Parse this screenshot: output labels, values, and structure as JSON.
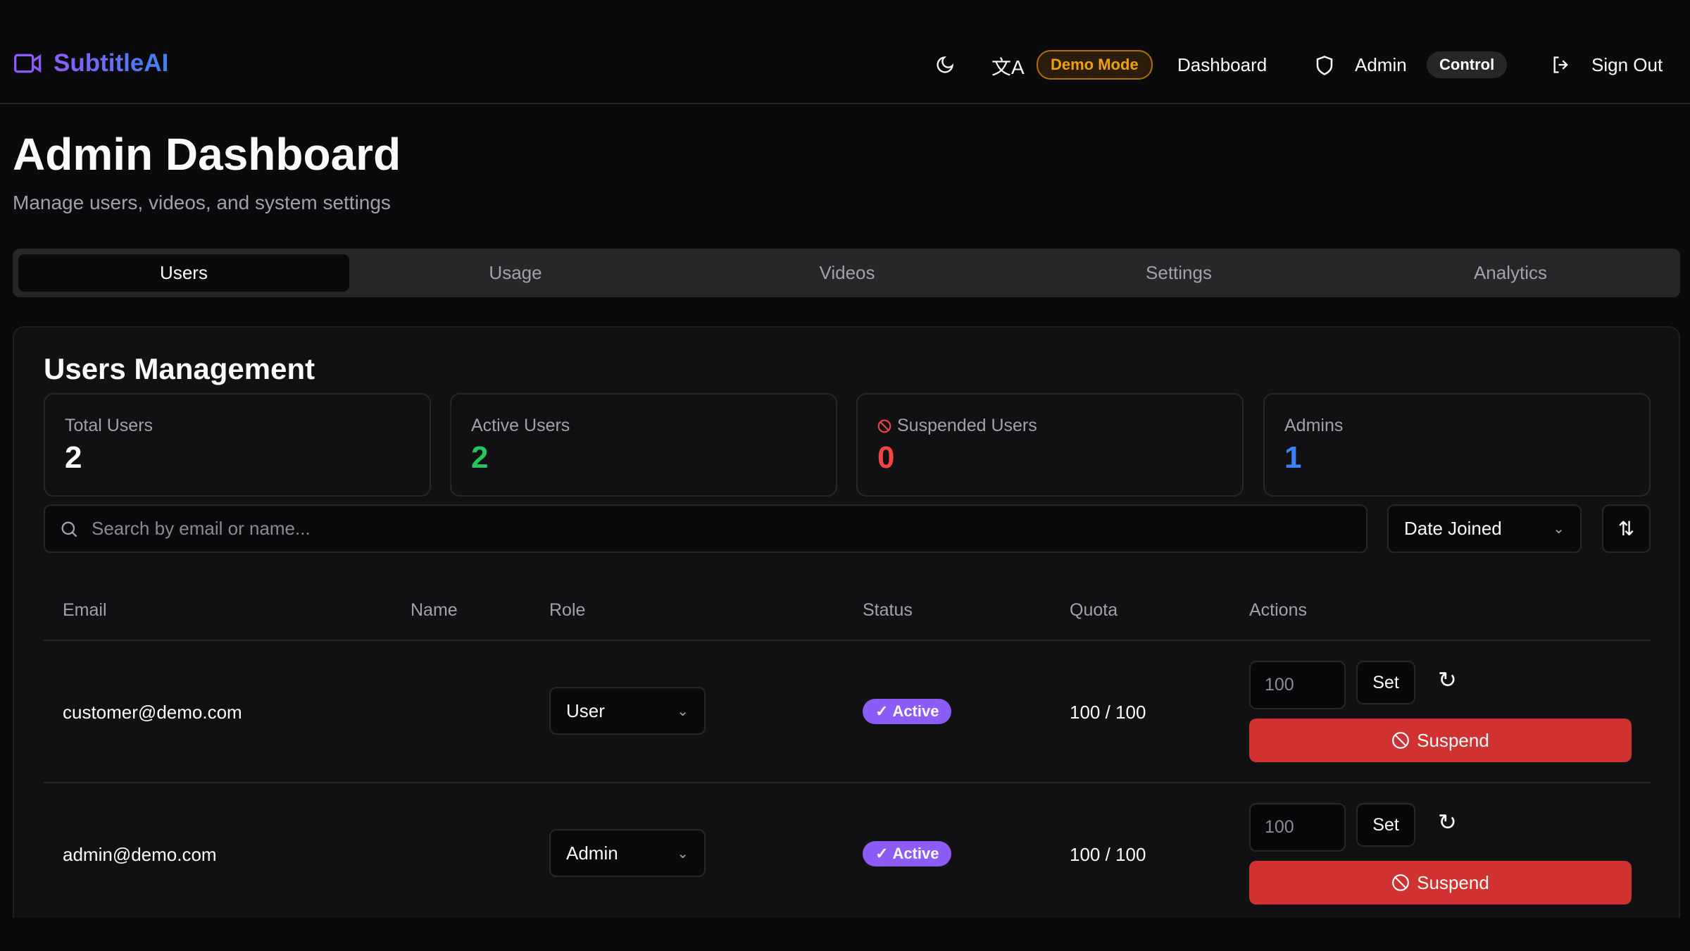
{
  "header": {
    "brand": "SubtitleAI",
    "demo_mode": "Demo Mode",
    "dashboard": "Dashboard",
    "admin": "Admin",
    "control": "Control",
    "sign_out": "Sign Out"
  },
  "page": {
    "title": "Admin Dashboard",
    "subtitle": "Manage users, videos, and system settings"
  },
  "tabs": [
    {
      "label": "Users",
      "active": true
    },
    {
      "label": "Usage"
    },
    {
      "label": "Videos"
    },
    {
      "label": "Settings"
    },
    {
      "label": "Analytics"
    }
  ],
  "users": {
    "title": "Users Management",
    "stats": [
      {
        "label": "Total Users",
        "value": "2",
        "color": "#fafafa"
      },
      {
        "label": "Active Users",
        "value": "2",
        "color": "#22c55e"
      },
      {
        "label": "Suspended Users",
        "value": "0",
        "color": "#ef4444"
      },
      {
        "label": "Admins",
        "value": "1",
        "color": "#3b82f6"
      }
    ],
    "search_placeholder": "Search by email or name...",
    "sort_by": "Date Joined",
    "columns": [
      "Email",
      "Name",
      "Role",
      "Status",
      "Quota",
      "Actions"
    ],
    "rows": [
      {
        "email": "customer@demo.com",
        "name": "",
        "role": "User",
        "status": "Active",
        "quota": "100 / 100",
        "quota_input": "100",
        "set": "Set",
        "suspend": "Suspend"
      },
      {
        "email": "admin@demo.com",
        "name": "",
        "role": "Admin",
        "status": "Active",
        "quota": "100 / 100",
        "quota_input": "100",
        "set": "Set",
        "suspend": "Suspend"
      }
    ]
  },
  "colors": {
    "accent": "#8b5cf6",
    "brand_gradient_end": "#3b82f6",
    "danger": "#d03131",
    "demo": "#f59e0b"
  }
}
